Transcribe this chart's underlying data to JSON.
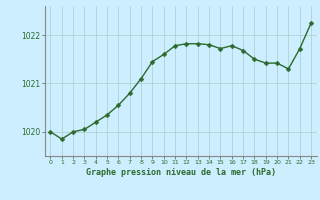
{
  "x": [
    0,
    1,
    2,
    3,
    4,
    5,
    6,
    7,
    8,
    9,
    10,
    11,
    12,
    13,
    14,
    15,
    16,
    17,
    18,
    19,
    20,
    21,
    22,
    23
  ],
  "y": [
    1020.0,
    1019.85,
    1020.0,
    1020.05,
    1020.2,
    1020.35,
    1020.55,
    1020.8,
    1021.1,
    1021.45,
    1021.6,
    1021.78,
    1021.82,
    1021.82,
    1021.8,
    1021.72,
    1021.78,
    1021.68,
    1021.5,
    1021.42,
    1021.42,
    1021.3,
    1021.72,
    1022.25
  ],
  "line_color": "#2d6a2d",
  "marker_color": "#2d6a2d",
  "bg_color": "#cceeff",
  "grid_color": "#aacccc",
  "xlabel": "Graphe pression niveau de la mer (hPa)",
  "xlabel_color": "#2d6a2d",
  "yticks": [
    1020,
    1021,
    1022
  ],
  "ylim": [
    1019.5,
    1022.6
  ],
  "xlim": [
    -0.5,
    23.5
  ],
  "xticks": [
    0,
    1,
    2,
    3,
    4,
    5,
    6,
    7,
    8,
    9,
    10,
    11,
    12,
    13,
    14,
    15,
    16,
    17,
    18,
    19,
    20,
    21,
    22,
    23
  ],
  "tick_color": "#2d6a2d",
  "marker_size": 2.5,
  "line_width": 1.0
}
